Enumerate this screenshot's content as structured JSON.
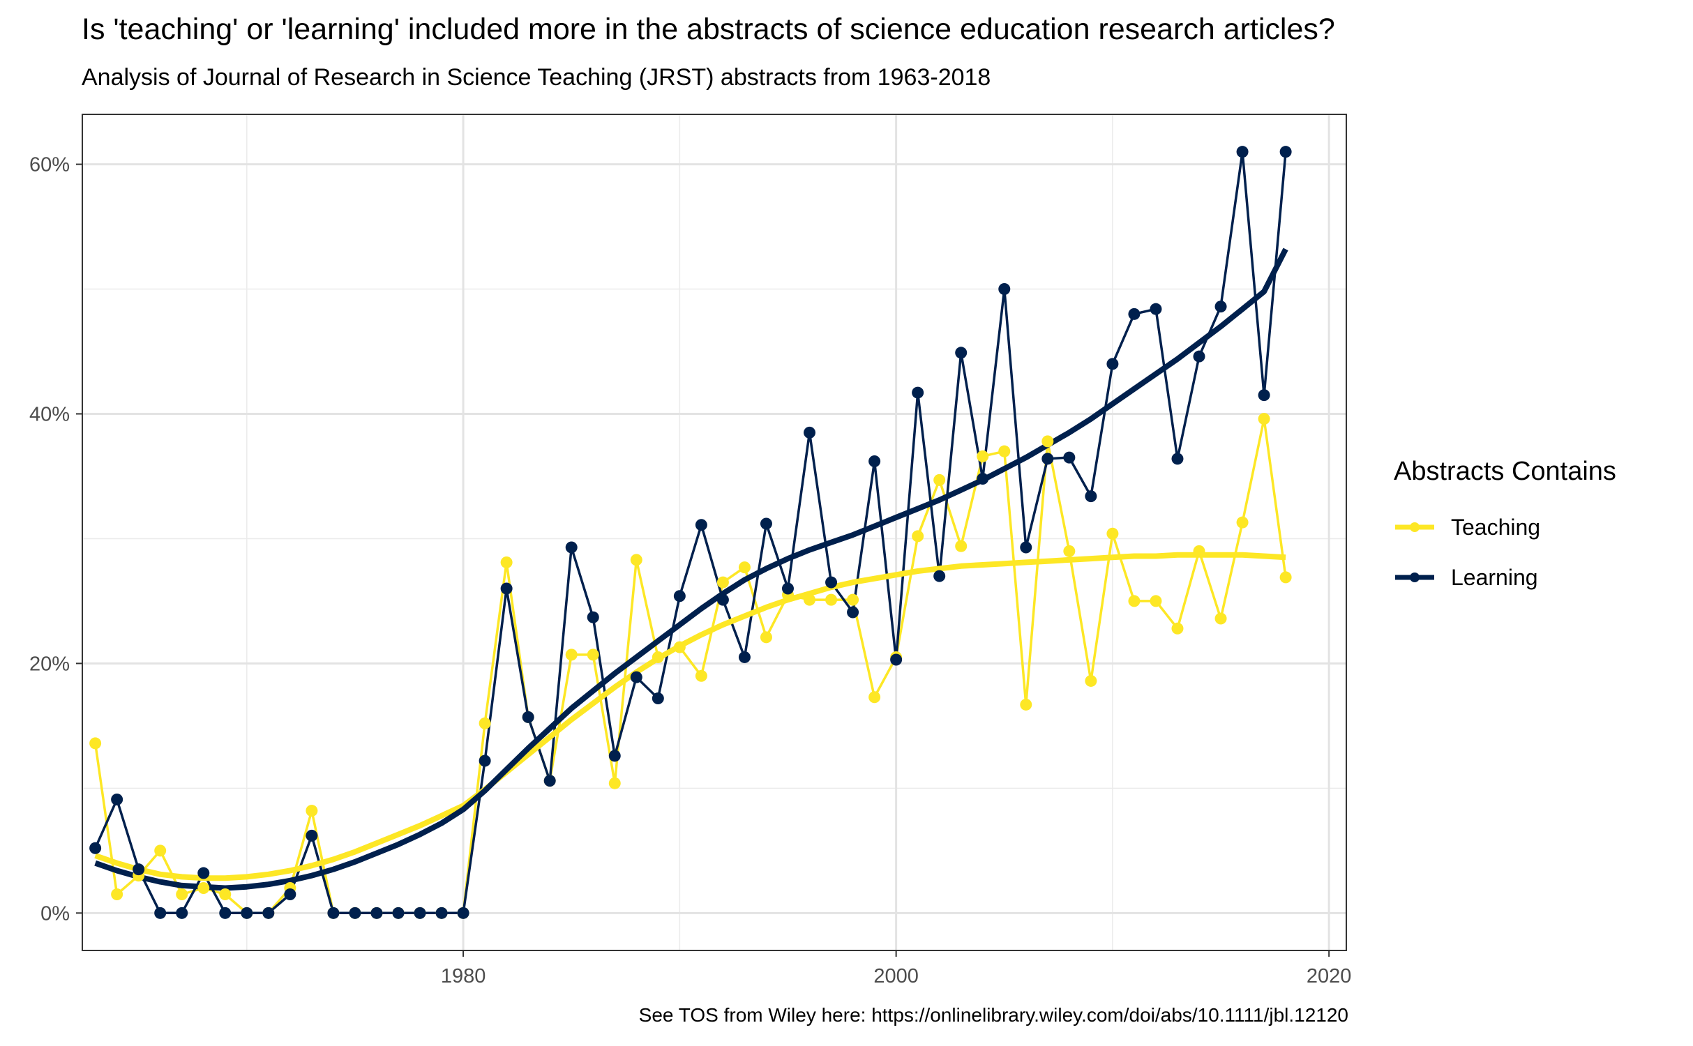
{
  "chart_data": {
    "type": "line",
    "title": "Is 'teaching' or 'learning' included more in the abstracts of science education research articles?",
    "subtitle": "Analysis of Journal of Research in Science Teaching (JRST) abstracts from 1963-2018",
    "caption": "See TOS from Wiley here: https://onlinelibrary.wiley.com/doi/abs/10.1111/jbl.12120",
    "xlabel": "",
    "ylabel": "",
    "xlim": [
      1962.4,
      2020.8
    ],
    "ylim": [
      -0.03,
      0.64
    ],
    "x_ticks": [
      1980,
      2000,
      2020
    ],
    "x_tick_labels": [
      "1980",
      "2000",
      "2020"
    ],
    "y_ticks": [
      0,
      0.2,
      0.4,
      0.6
    ],
    "y_tick_labels": [
      "0%",
      "20%",
      "40%",
      "60%"
    ],
    "grid": true,
    "legend_position": "right",
    "legend_title": "Abstracts Contains",
    "x": [
      1963,
      1964,
      1965,
      1966,
      1967,
      1968,
      1969,
      1970,
      1971,
      1972,
      1973,
      1974,
      1975,
      1976,
      1977,
      1978,
      1979,
      1980,
      1981,
      1982,
      1983,
      1984,
      1985,
      1986,
      1987,
      1988,
      1989,
      1990,
      1991,
      1992,
      1993,
      1994,
      1995,
      1996,
      1997,
      1998,
      1999,
      2000,
      2001,
      2002,
      2003,
      2004,
      2005,
      2006,
      2007,
      2008,
      2009,
      2010,
      2011,
      2012,
      2013,
      2014,
      2015,
      2016,
      2017,
      2018
    ],
    "series": [
      {
        "name": "Teaching",
        "color": "#FDE725",
        "values": [
          0.136,
          0.015,
          0.03,
          0.05,
          0.015,
          0.02,
          0.015,
          0.0,
          0.0,
          0.02,
          0.082,
          0.0,
          0.0,
          0.0,
          0.0,
          0.0,
          0.0,
          0.0,
          0.152,
          0.281,
          0.157,
          0.106,
          0.207,
          0.207,
          0.104,
          0.283,
          0.205,
          0.213,
          0.19,
          0.265,
          0.277,
          0.221,
          0.255,
          0.251,
          0.251,
          0.251,
          0.173,
          0.205,
          0.302,
          0.347,
          0.294,
          0.366,
          0.37,
          0.167,
          0.378,
          0.29,
          0.186,
          0.304,
          0.25,
          0.25,
          0.228,
          0.29,
          0.236,
          0.313,
          0.396,
          0.269
        ],
        "smooth": [
          0.046,
          0.04,
          0.035,
          0.031,
          0.029,
          0.028,
          0.028,
          0.029,
          0.031,
          0.034,
          0.038,
          0.043,
          0.049,
          0.056,
          0.063,
          0.07,
          0.078,
          0.086,
          0.099,
          0.113,
          0.127,
          0.141,
          0.155,
          0.168,
          0.181,
          0.193,
          0.204,
          0.214,
          0.223,
          0.231,
          0.238,
          0.245,
          0.251,
          0.256,
          0.261,
          0.265,
          0.268,
          0.271,
          0.274,
          0.276,
          0.278,
          0.279,
          0.28,
          0.281,
          0.282,
          0.283,
          0.284,
          0.285,
          0.286,
          0.286,
          0.287,
          0.287,
          0.287,
          0.287,
          0.286,
          0.285
        ]
      },
      {
        "name": "Learning",
        "color": "#00204D",
        "values": [
          0.052,
          0.091,
          0.035,
          0.0,
          0.0,
          0.032,
          0.0,
          0.0,
          0.0,
          0.015,
          0.062,
          0.0,
          0.0,
          0.0,
          0.0,
          0.0,
          0.0,
          0.0,
          0.122,
          0.26,
          0.157,
          0.106,
          0.293,
          0.237,
          0.126,
          0.189,
          0.172,
          0.254,
          0.311,
          0.251,
          0.205,
          0.312,
          0.26,
          0.385,
          0.265,
          0.241,
          0.362,
          0.203,
          0.417,
          0.27,
          0.449,
          0.348,
          0.5,
          0.293,
          0.364,
          0.365,
          0.334,
          0.44,
          0.48,
          0.484,
          0.364,
          0.446,
          0.486,
          0.61,
          0.415,
          0.61
        ],
        "smooth": [
          0.04,
          0.034,
          0.029,
          0.025,
          0.022,
          0.021,
          0.02,
          0.021,
          0.023,
          0.026,
          0.03,
          0.035,
          0.041,
          0.048,
          0.055,
          0.063,
          0.072,
          0.083,
          0.098,
          0.115,
          0.132,
          0.148,
          0.164,
          0.178,
          0.192,
          0.205,
          0.218,
          0.231,
          0.244,
          0.256,
          0.267,
          0.276,
          0.284,
          0.291,
          0.297,
          0.303,
          0.31,
          0.317,
          0.324,
          0.331,
          0.339,
          0.347,
          0.356,
          0.365,
          0.375,
          0.385,
          0.396,
          0.408,
          0.42,
          0.432,
          0.444,
          0.457,
          0.47,
          0.484,
          0.498,
          0.532
        ]
      }
    ]
  }
}
